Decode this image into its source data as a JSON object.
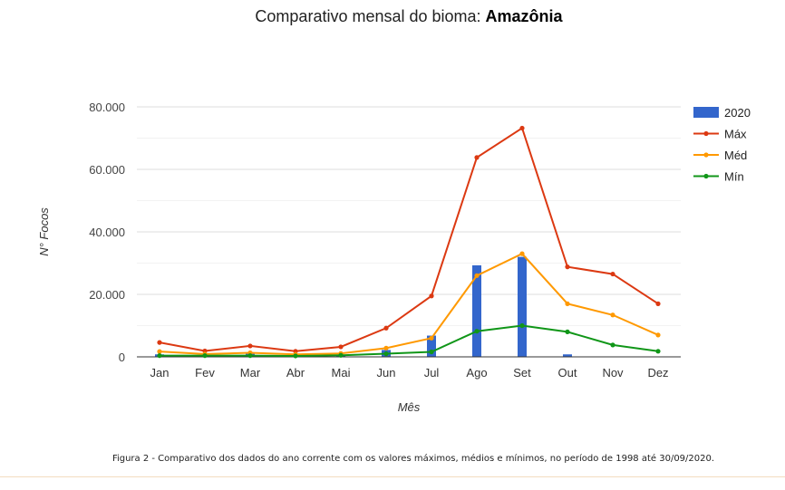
{
  "chart_data": {
    "type": "bar+line",
    "title_prefix": "Comparativo mensal do bioma: ",
    "title_bold": "Amazônia",
    "xlabel": "Mês",
    "ylabel": "N° Focos",
    "ylim": [
      0,
      80000
    ],
    "yticks": [
      0,
      20000,
      40000,
      60000,
      80000
    ],
    "ytick_labels": [
      "0",
      "20.000",
      "40.000",
      "60.000",
      "80.000"
    ],
    "categories": [
      "Jan",
      "Fev",
      "Mar",
      "Abr",
      "Mai",
      "Jun",
      "Jul",
      "Ago",
      "Set",
      "Out",
      "Nov",
      "Dez"
    ],
    "series": [
      {
        "name": "2020",
        "kind": "bar",
        "color": "#3366cc",
        "values": [
          800,
          300,
          1000,
          400,
          600,
          2200,
          6800,
          29300,
          32000,
          800,
          null,
          null
        ]
      },
      {
        "name": "Máx",
        "kind": "line",
        "color": "#dc3912",
        "values": [
          4600,
          1900,
          3500,
          1800,
          3200,
          9200,
          19500,
          63800,
          73200,
          28800,
          26500,
          17000
        ]
      },
      {
        "name": "Méd",
        "kind": "line",
        "color": "#ff9900",
        "values": [
          1700,
          900,
          1300,
          800,
          1100,
          2800,
          6000,
          26000,
          33000,
          17000,
          13400,
          7000
        ]
      },
      {
        "name": "Mín",
        "kind": "line",
        "color": "#109618",
        "values": [
          400,
          400,
          400,
          300,
          500,
          1000,
          1600,
          8200,
          10000,
          8000,
          3800,
          1800
        ]
      }
    ]
  },
  "caption": "Figura 2 - Comparativo dos dados do ano corrente com os valores máximos, médios e mínimos, no período de 1998 até 30/09/2020."
}
